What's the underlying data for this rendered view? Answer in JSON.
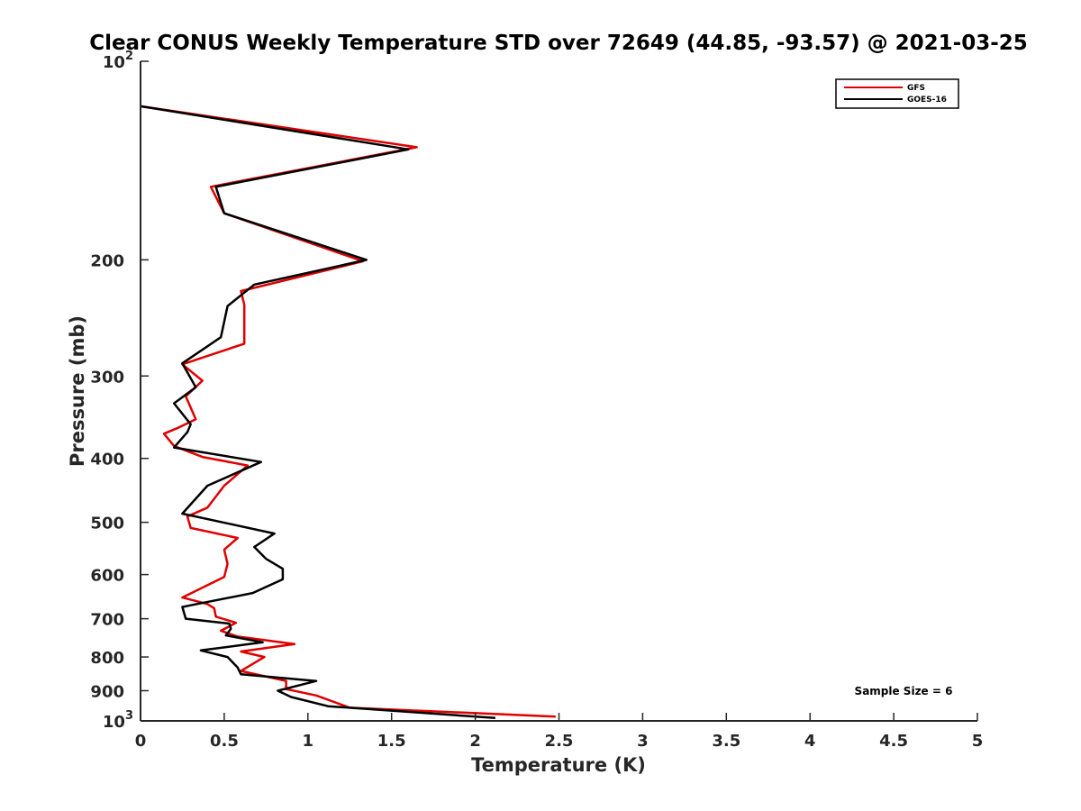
{
  "chart_data": {
    "type": "line",
    "title": "Clear CONUS Weekly Temperature STD over 72649 (44.85, -93.57) @ 2021-03-25",
    "xlabel": "Temperature (K)",
    "ylabel": "Pressure (mb)",
    "xlim": [
      0,
      5
    ],
    "ylim": [
      1000,
      100
    ],
    "yscale": "log",
    "y_reversed": true,
    "grid": false,
    "legend_position": "top-right",
    "x_ticks": [
      "0",
      "0.5",
      "1",
      "1.5",
      "2",
      "2.5",
      "3",
      "3.5",
      "4",
      "4.5",
      "5"
    ],
    "y_ticks": [
      {
        "value": 100,
        "base": "10",
        "exp": "2"
      },
      {
        "value": 200,
        "label": "200"
      },
      {
        "value": 300,
        "label": "300"
      },
      {
        "value": 400,
        "label": "400"
      },
      {
        "value": 500,
        "label": "500"
      },
      {
        "value": 600,
        "label": "600"
      },
      {
        "value": 700,
        "label": "700"
      },
      {
        "value": 800,
        "label": "800"
      },
      {
        "value": 900,
        "label": "900"
      },
      {
        "value": 1000,
        "base": "10",
        "exp": "3"
      }
    ],
    "annotation": "Sample Size = 6",
    "series": [
      {
        "name": "GFS",
        "color": "#e00000",
        "points": [
          [
            0.0,
            117
          ],
          [
            1.65,
            135
          ],
          [
            0.42,
            155
          ],
          [
            0.5,
            170
          ],
          [
            1.33,
            201
          ],
          [
            0.6,
            223
          ],
          [
            0.62,
            234
          ],
          [
            0.62,
            268
          ],
          [
            0.25,
            288
          ],
          [
            0.37,
            305
          ],
          [
            0.27,
            322
          ],
          [
            0.33,
            349
          ],
          [
            0.23,
            359
          ],
          [
            0.14,
            367
          ],
          [
            0.2,
            383
          ],
          [
            0.37,
            398
          ],
          [
            0.64,
            410
          ],
          [
            0.5,
            440
          ],
          [
            0.4,
            475
          ],
          [
            0.28,
            490
          ],
          [
            0.3,
            510
          ],
          [
            0.58,
            528
          ],
          [
            0.5,
            550
          ],
          [
            0.52,
            578
          ],
          [
            0.5,
            605
          ],
          [
            0.25,
            650
          ],
          [
            0.4,
            665
          ],
          [
            0.44,
            675
          ],
          [
            0.45,
            695
          ],
          [
            0.57,
            710
          ],
          [
            0.48,
            730
          ],
          [
            0.58,
            745
          ],
          [
            0.92,
            765
          ],
          [
            0.6,
            785
          ],
          [
            0.74,
            800
          ],
          [
            0.6,
            840
          ],
          [
            0.87,
            870
          ],
          [
            0.87,
            895
          ],
          [
            1.05,
            915
          ],
          [
            1.25,
            955
          ],
          [
            2.48,
            985
          ]
        ]
      },
      {
        "name": "GOES-16",
        "color": "#000000",
        "points": [
          [
            0.0,
            117
          ],
          [
            1.6,
            136
          ],
          [
            0.45,
            155
          ],
          [
            0.5,
            170
          ],
          [
            1.35,
            200
          ],
          [
            0.68,
            218
          ],
          [
            0.52,
            235
          ],
          [
            0.48,
            262
          ],
          [
            0.25,
            287
          ],
          [
            0.33,
            312
          ],
          [
            0.2,
            330
          ],
          [
            0.3,
            355
          ],
          [
            0.28,
            365
          ],
          [
            0.2,
            385
          ],
          [
            0.72,
            405
          ],
          [
            0.4,
            440
          ],
          [
            0.25,
            485
          ],
          [
            0.8,
            520
          ],
          [
            0.68,
            545
          ],
          [
            0.75,
            568
          ],
          [
            0.85,
            588
          ],
          [
            0.85,
            610
          ],
          [
            0.67,
            640
          ],
          [
            0.3,
            668
          ],
          [
            0.25,
            672
          ],
          [
            0.27,
            700
          ],
          [
            0.53,
            712
          ],
          [
            0.54,
            725
          ],
          [
            0.51,
            742
          ],
          [
            0.73,
            760
          ],
          [
            0.36,
            782
          ],
          [
            0.52,
            800
          ],
          [
            0.58,
            830
          ],
          [
            0.6,
            850
          ],
          [
            1.05,
            870
          ],
          [
            0.82,
            900
          ],
          [
            0.9,
            920
          ],
          [
            1.12,
            950
          ],
          [
            2.12,
            990
          ]
        ]
      }
    ]
  }
}
